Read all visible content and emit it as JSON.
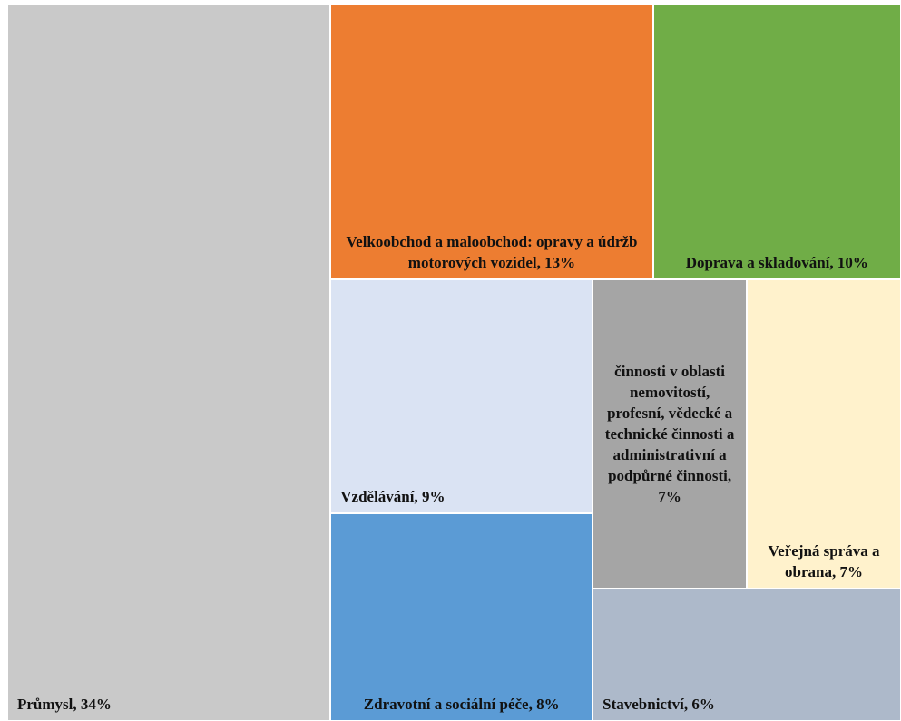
{
  "chart_data": {
    "type": "treemap",
    "labels": [
      "Průmysl, 34%",
      "Velkoobchod a maloobchod: opravy a údržb motorových vozidel, 13%",
      "Doprava a skladování, 10%",
      "Vzdělávání, 9%",
      "Zdravotní a sociální péče, 8%",
      "činnosti v oblasti nemovitostí, profesní, vědecké a technické činnosti a administrativní a podpůrné činnosti, 7%",
      "Veřejná správa a obrana, 7%",
      "Stavebnictví, 6%"
    ],
    "values": [
      34,
      13,
      10,
      9,
      8,
      7,
      7,
      6
    ],
    "colors": [
      "#c9c9c9",
      "#ed7d31",
      "#70ad47",
      "#dae3f3",
      "#5b9bd5",
      "#a5a5a5",
      "#fff2cc",
      "#adb9ca"
    ]
  }
}
